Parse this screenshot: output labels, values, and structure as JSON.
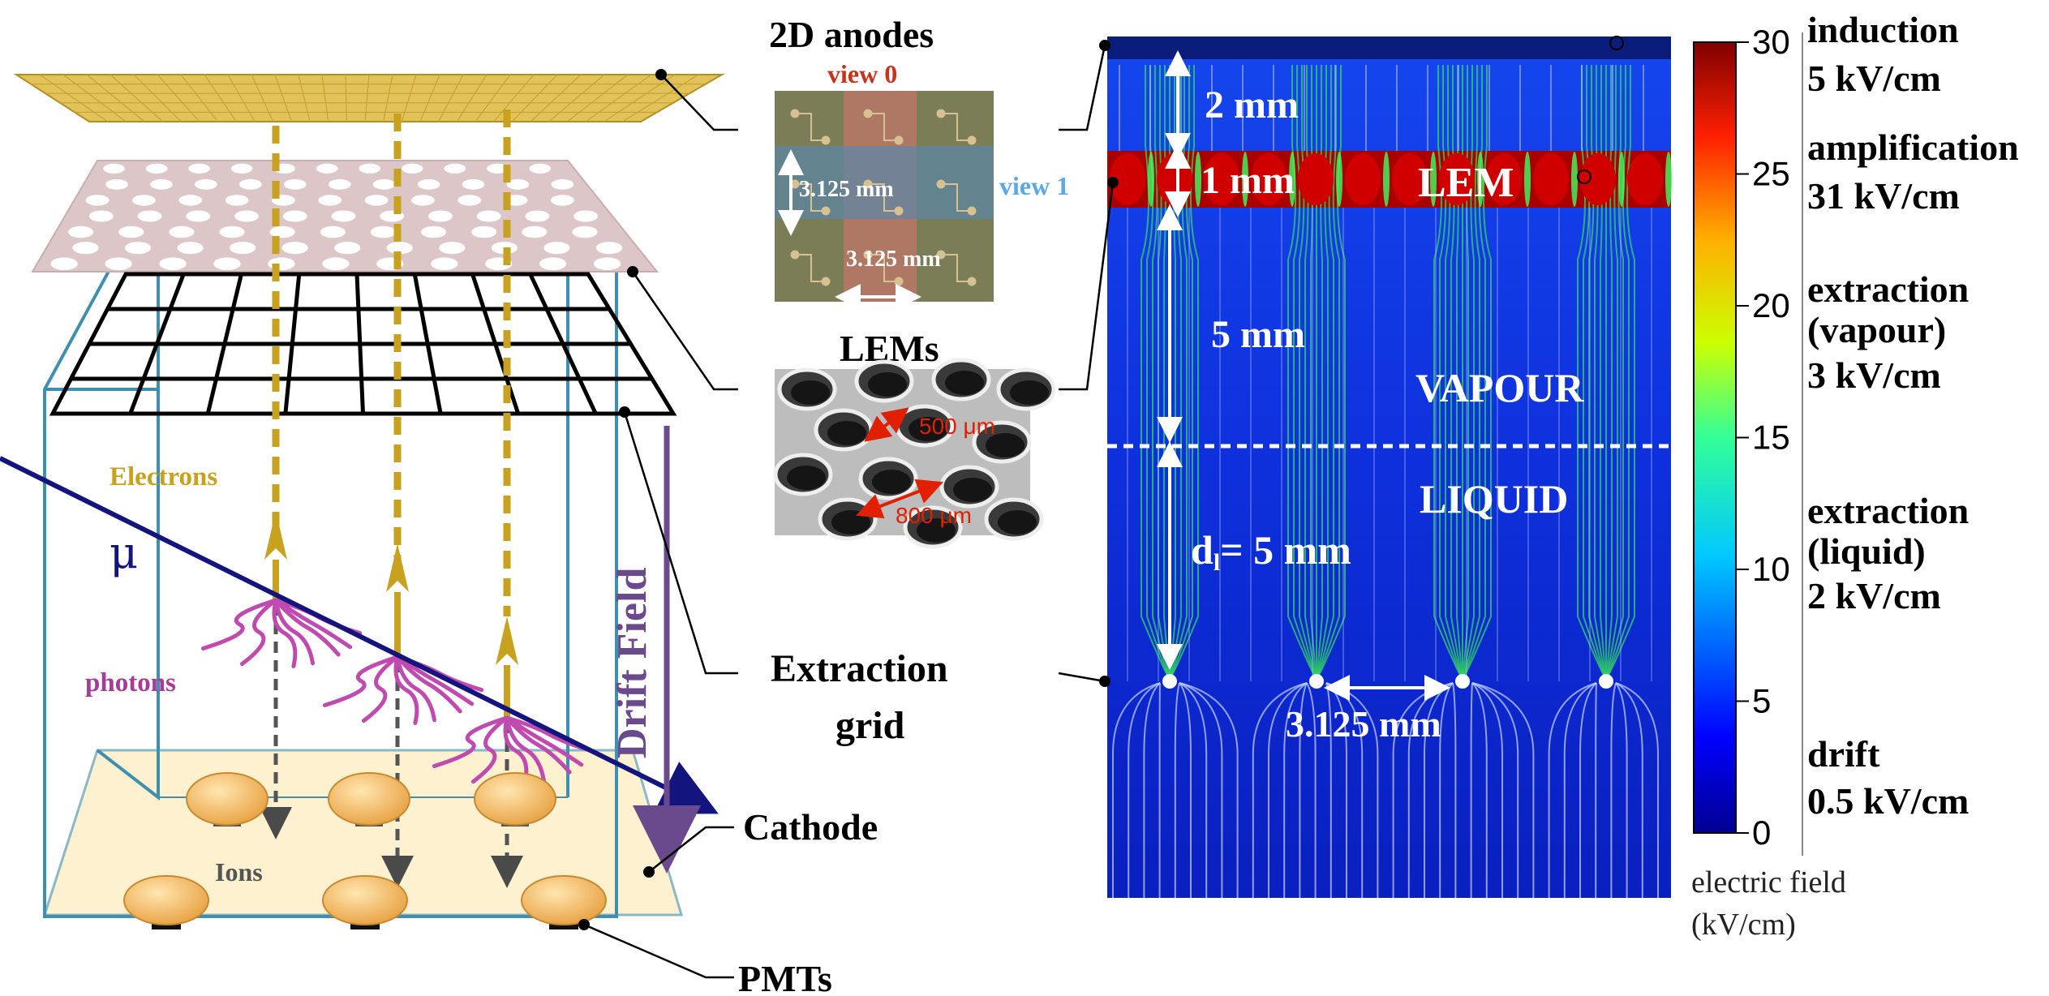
{
  "detector": {
    "electrons_label": "Electrons",
    "muon_label": "μ",
    "photons_label": "photons",
    "drift_field_label": "Drift Field",
    "ions_label": "Ions",
    "cathode_label": "Cathode",
    "pmts_label": "PMTs",
    "extraction_grid_label_1": "Extraction",
    "extraction_grid_label_2": "grid"
  },
  "anodes_inset": {
    "title": "2D anodes",
    "view0_label": "view 0",
    "view1_label": "view 1",
    "pitch_vertical": "3.125 mm",
    "pitch_horizontal": "3.125 mm"
  },
  "lem_inset": {
    "title": "LEMs",
    "hole_diameter": "500 μm",
    "hole_spacing": "800 μm"
  },
  "field_map": {
    "gap_induction": "2 mm",
    "gap_lem": "1 mm",
    "lem_label": "LEM",
    "gap_vapour": "5 mm",
    "vapour_label": "VAPOUR",
    "liquid_label": "LIQUID",
    "gap_liquid_prefix": "d",
    "gap_liquid_sub": "l",
    "gap_liquid_value": "= 5 mm",
    "grid_pitch": "3.125 mm"
  },
  "colorbar": {
    "ticks": [
      "30",
      "25",
      "20",
      "15",
      "10",
      "5",
      "0"
    ],
    "axis_label_line1": "electric field",
    "axis_label_line2": "(kV/cm)"
  },
  "field_regions": [
    {
      "name": "induction",
      "value": "5 kV/cm"
    },
    {
      "name": "amplification",
      "value": "31 kV/cm"
    },
    {
      "name": "extraction",
      "sub": "(vapour)",
      "value": "3 kV/cm"
    },
    {
      "name": "extraction",
      "sub": "(liquid)",
      "value": "2 kV/cm"
    },
    {
      "name": "drift",
      "value": "0.5 kV/cm"
    }
  ],
  "colors": {
    "electron_gold": "#c8a21e",
    "muon_navy": "#14147e",
    "photon_magenta": "#c04ab0",
    "drift_purple": "#6a4a8c",
    "cage_teal": "#3f8fb0",
    "field_blue": "#0b2ad8",
    "lem_red": "#b80000",
    "view0_red": "#c8331a",
    "view1_blue": "#5aa8e6"
  }
}
